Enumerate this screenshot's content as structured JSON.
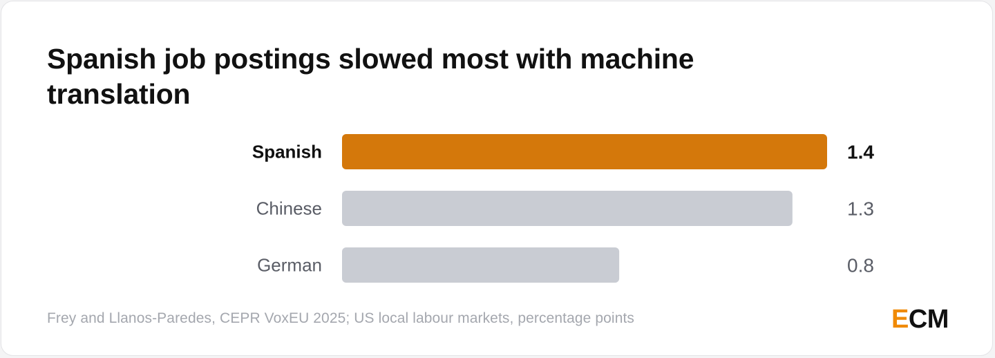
{
  "title": "Spanish job postings slowed most with machine translation",
  "source": "Frey and Llanos-Paredes, CEPR VoxEU 2025; US local labour markets, percentage points",
  "logo": {
    "first": "E",
    "rest": "CM"
  },
  "colors": {
    "highlight": "#d4780b",
    "muted": "#c9ccd3",
    "highlight_text": "#111111",
    "muted_text": "#5a5d66",
    "logo_accent": "#f08a06"
  },
  "chart_data": {
    "type": "bar",
    "orientation": "horizontal",
    "categories": [
      "Spanish",
      "Chinese",
      "German"
    ],
    "values": [
      1.4,
      1.3,
      0.8
    ],
    "value_labels": [
      "1.4",
      "1.3",
      "0.8"
    ],
    "highlighted": [
      "Spanish"
    ],
    "title": "Spanish job postings slowed most with machine translation",
    "xlabel": "",
    "ylabel": "",
    "xlim": [
      0,
      1.4
    ],
    "grid": false
  }
}
